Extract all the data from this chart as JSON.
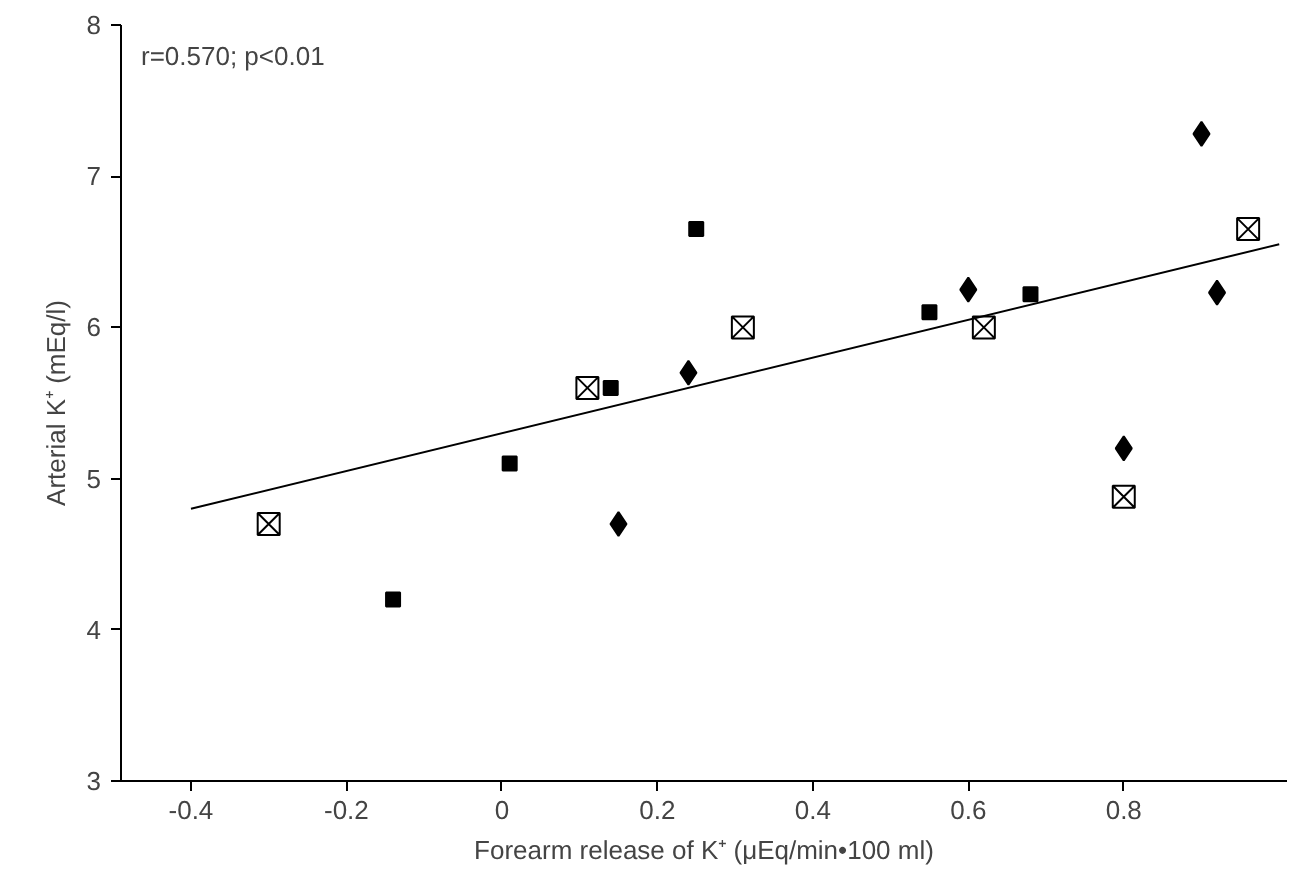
{
  "chart_data": {
    "type": "scatter",
    "xlabel": "Forearm release of K⁺ (μEq/min•100 ml)",
    "ylabel": "Arterial K⁺ (mEq/l)",
    "annotations": [
      "r=0.570; p<0.01"
    ],
    "xlim": [
      -0.49,
      1.01
    ],
    "ylim": [
      3,
      8
    ],
    "xticks": [
      -0.4,
      -0.2,
      0,
      0.2,
      0.4,
      0.6,
      0.8
    ],
    "yticks": [
      3,
      4,
      5,
      6,
      7,
      8
    ],
    "grid": false,
    "series": [
      {
        "marker": "square",
        "color": "#000000",
        "x": [
          -0.14,
          0.01,
          0.14,
          0.25,
          0.55,
          0.68
        ],
        "values": [
          4.2,
          5.1,
          5.6,
          6.65,
          6.1,
          6.22
        ]
      },
      {
        "marker": "diamond",
        "color": "#000000",
        "x": [
          0.15,
          0.24,
          0.6,
          0.8,
          0.9,
          0.92
        ],
        "values": [
          4.7,
          5.7,
          6.25,
          5.2,
          7.28,
          6.23
        ]
      },
      {
        "marker": "cross",
        "color": "#000000",
        "x": [
          -0.3,
          0.11,
          0.31,
          0.62,
          0.8,
          0.96
        ],
        "values": [
          4.7,
          5.6,
          6.0,
          6.0,
          4.88,
          6.65
        ]
      },
      {
        "type": "line",
        "color": "#000000",
        "x": [
          -0.4,
          1.0
        ],
        "values": [
          4.8,
          6.55
        ]
      }
    ]
  }
}
